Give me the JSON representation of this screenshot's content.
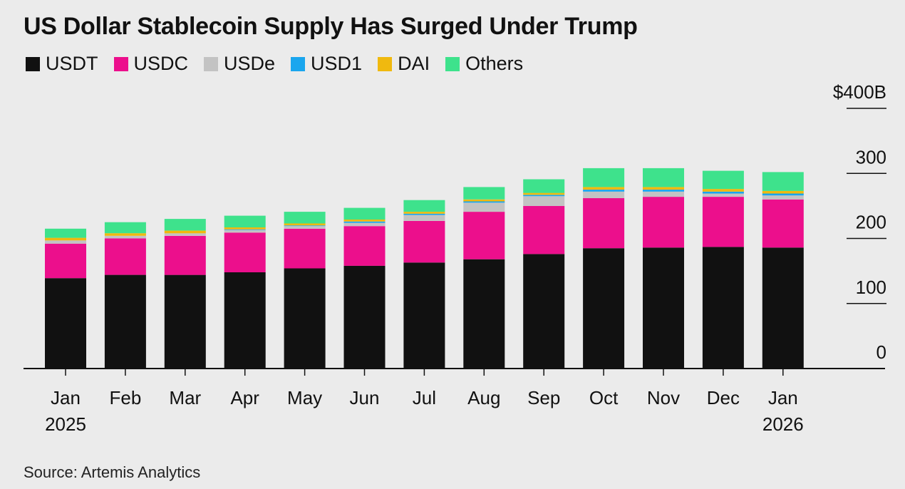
{
  "title": "US Dollar Stablecoin Supply Has Surged Under Trump",
  "source": "Source: Artemis Analytics",
  "chart_data": {
    "type": "bar",
    "stacked": true,
    "categories": [
      "Jan 2025",
      "Feb",
      "Mar",
      "Apr",
      "May",
      "Jun",
      "Jul",
      "Aug",
      "Sep",
      "Oct",
      "Nov",
      "Dec",
      "Jan 2026"
    ],
    "x_tick_labels": [
      [
        "Jan",
        "2025"
      ],
      [
        "Feb"
      ],
      [
        "Mar"
      ],
      [
        "Apr"
      ],
      [
        "May"
      ],
      [
        "Jun"
      ],
      [
        "Jul"
      ],
      [
        "Aug"
      ],
      [
        "Sep"
      ],
      [
        "Oct"
      ],
      [
        "Nov"
      ],
      [
        "Dec"
      ],
      [
        "Jan",
        "2026"
      ]
    ],
    "series": [
      {
        "name": "USDT",
        "color": "#111111",
        "values": [
          139,
          144,
          144,
          148,
          154,
          158,
          163,
          168,
          176,
          185,
          186,
          187,
          186
        ]
      },
      {
        "name": "USDC",
        "color": "#ec0f8c",
        "values": [
          53,
          56,
          60,
          61,
          61,
          61,
          64,
          73,
          74,
          77,
          78,
          77,
          74
        ]
      },
      {
        "name": "USDe",
        "color": "#c3c3c3",
        "values": [
          5,
          4,
          4,
          4,
          4,
          5,
          9,
          14,
          15,
          10,
          8,
          5,
          6
        ]
      },
      {
        "name": "USD1",
        "color": "#1aa6ee",
        "values": [
          0,
          0,
          0,
          1,
          1,
          2,
          2,
          2,
          2,
          3,
          3,
          3,
          3
        ]
      },
      {
        "name": "DAI",
        "color": "#f0b90f",
        "values": [
          4,
          4,
          4,
          3,
          3,
          3,
          3,
          3,
          3,
          4,
          4,
          4,
          4
        ]
      },
      {
        "name": "Others",
        "color": "#3ee28c",
        "values": [
          14,
          17,
          18,
          18,
          18,
          18,
          18,
          19,
          21,
          29,
          29,
          28,
          29
        ]
      }
    ],
    "yaxis": {
      "ticks": [
        0,
        100,
        200,
        300,
        400
      ],
      "tick_labels": [
        "0",
        "100",
        "200",
        "300",
        "$400B"
      ],
      "position": "right"
    },
    "ylim": [
      0,
      400
    ],
    "xlabel": "",
    "ylabel": "",
    "grid": false,
    "legend_position": "top-left"
  }
}
